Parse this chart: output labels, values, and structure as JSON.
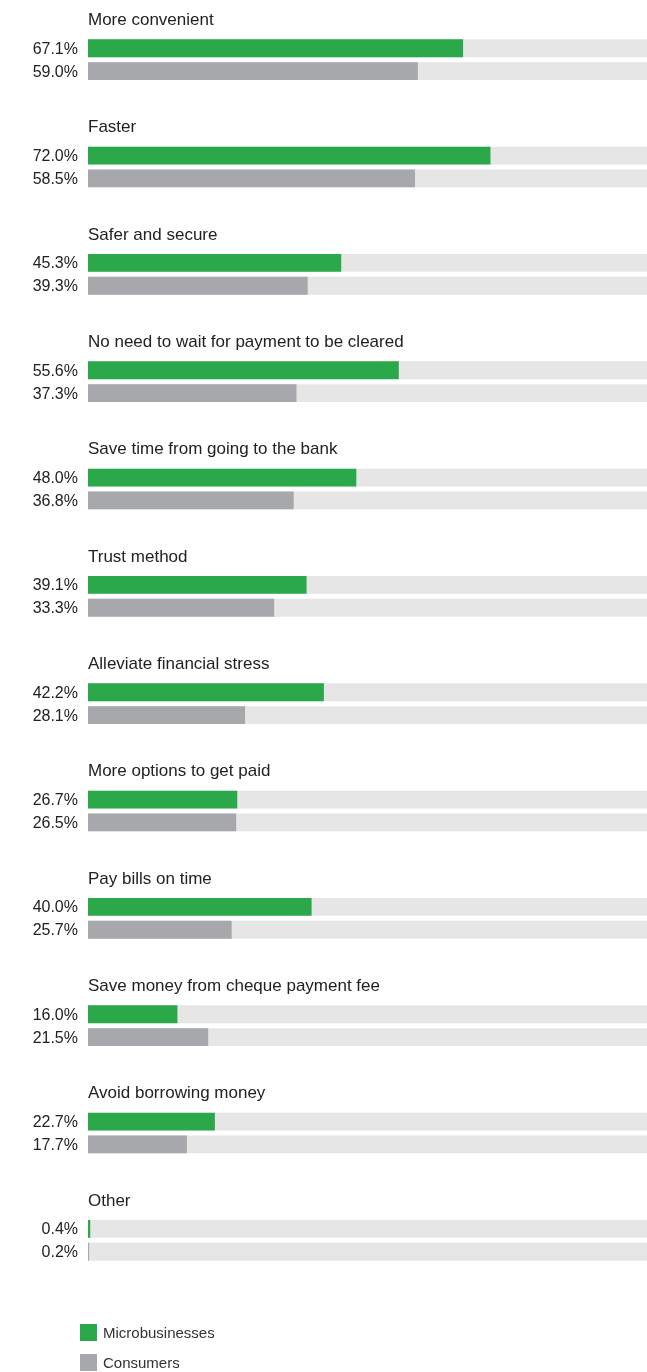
{
  "chart_data": {
    "type": "bar",
    "orientation": "horizontal",
    "categories": [
      "More convenient",
      "Faster",
      "Safer and secure",
      "No need to wait for payment to be cleared",
      "Save time from going to the bank",
      "Trust method",
      "Alleviate financial stress",
      "More options to get paid",
      "Pay bills on time",
      "Save money from cheque payment fee",
      "Avoid borrowing money",
      "Other"
    ],
    "series": [
      {
        "name": "Microbusinesses",
        "color": "#2aa84a",
        "values": [
          67.1,
          72.0,
          45.3,
          55.6,
          48.0,
          39.1,
          42.2,
          26.7,
          40.0,
          16.0,
          22.7,
          0.4
        ],
        "value_labels": [
          "67.1%",
          "72.0%",
          "45.3%",
          "55.6%",
          "48.0%",
          "39.1%",
          "42.2%",
          "26.7%",
          "40.0%",
          "16.0%",
          "22.7%",
          "0.4%"
        ]
      },
      {
        "name": "Consumers",
        "color": "#a7a8ab",
        "values": [
          59.0,
          58.5,
          39.3,
          37.3,
          36.8,
          33.3,
          28.1,
          26.5,
          25.7,
          21.5,
          17.7,
          0.2
        ],
        "value_labels": [
          "59.0%",
          "58.5%",
          "39.3%",
          "37.3%",
          "36.8%",
          "33.3%",
          "28.1%",
          "26.5%",
          "25.7%",
          "21.5%",
          "17.7%",
          "0.2%"
        ]
      }
    ],
    "xlim": [
      0,
      100
    ],
    "legend": "bottom left",
    "tick_labels": false
  }
}
